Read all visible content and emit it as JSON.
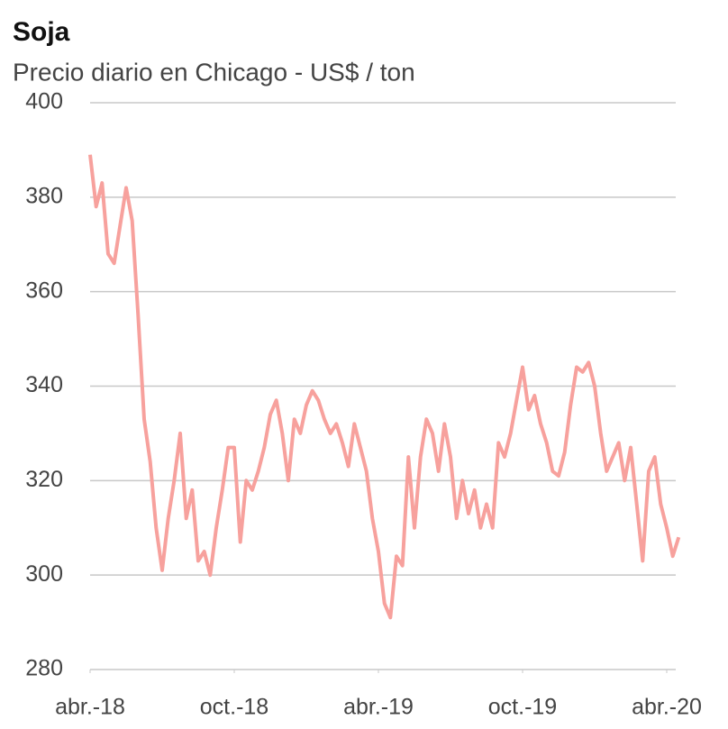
{
  "chart_data": {
    "type": "line",
    "title": "Soja",
    "subtitle": "Precio diario en Chicago - US$ / ton",
    "x": [
      "2018-04",
      "2018-04",
      "2018-04",
      "2018-04",
      "2018-05",
      "2018-05",
      "2018-05",
      "2018-05",
      "2018-06",
      "2018-06",
      "2018-06",
      "2018-06",
      "2018-07",
      "2018-07",
      "2018-07",
      "2018-07",
      "2018-08",
      "2018-08",
      "2018-08",
      "2018-08",
      "2018-09",
      "2018-09",
      "2018-09",
      "2018-09",
      "2018-10",
      "2018-10",
      "2018-10",
      "2018-10",
      "2018-11",
      "2018-11",
      "2018-11",
      "2018-11",
      "2018-12",
      "2018-12",
      "2018-12",
      "2018-12",
      "2019-01",
      "2019-01",
      "2019-01",
      "2019-01",
      "2019-02",
      "2019-02",
      "2019-02",
      "2019-02",
      "2019-03",
      "2019-03",
      "2019-03",
      "2019-03",
      "2019-04",
      "2019-04",
      "2019-04",
      "2019-04",
      "2019-05",
      "2019-05",
      "2019-05",
      "2019-05",
      "2019-06",
      "2019-06",
      "2019-06",
      "2019-06",
      "2019-07",
      "2019-07",
      "2019-07",
      "2019-07",
      "2019-08",
      "2019-08",
      "2019-08",
      "2019-08",
      "2019-09",
      "2019-09",
      "2019-09",
      "2019-09",
      "2019-10",
      "2019-10",
      "2019-10",
      "2019-10",
      "2019-11",
      "2019-11",
      "2019-11",
      "2019-11",
      "2019-12",
      "2019-12",
      "2019-12",
      "2019-12",
      "2020-01",
      "2020-01",
      "2020-01",
      "2020-01",
      "2020-02",
      "2020-02",
      "2020-02",
      "2020-02",
      "2020-03",
      "2020-03",
      "2020-03",
      "2020-03",
      "2020-04",
      "2020-04",
      "2020-04"
    ],
    "series": [
      {
        "name": "Soja",
        "color": "#f7a19d",
        "values": [
          389,
          378,
          383,
          368,
          366,
          374,
          382,
          375,
          355,
          333,
          324,
          310,
          301,
          312,
          320,
          330,
          312,
          318,
          303,
          305,
          300,
          310,
          318,
          327,
          327,
          307,
          320,
          318,
          322,
          327,
          334,
          337,
          330,
          320,
          333,
          330,
          336,
          339,
          337,
          333,
          330,
          332,
          328,
          323,
          332,
          327,
          322,
          312,
          305,
          294,
          291,
          304,
          302,
          325,
          310,
          325,
          333,
          330,
          322,
          332,
          325,
          312,
          320,
          313,
          318,
          310,
          315,
          310,
          328,
          325,
          330,
          337,
          344,
          335,
          338,
          332,
          328,
          322,
          321,
          326,
          336,
          344,
          343,
          345,
          340,
          330,
          322,
          325,
          328,
          320,
          327,
          315,
          303,
          322,
          325,
          315,
          310,
          304,
          308
        ]
      }
    ],
    "ylim": [
      280,
      400
    ],
    "yticks": [
      280,
      300,
      320,
      340,
      360,
      380,
      400
    ],
    "xticks": [
      {
        "value": "2018-04",
        "label": "abr.-18"
      },
      {
        "value": "2018-10",
        "label": "oct.-18"
      },
      {
        "value": "2019-04",
        "label": "abr.-19"
      },
      {
        "value": "2019-10",
        "label": "oct.-19"
      },
      {
        "value": "2020-04",
        "label": "abr.-20"
      }
    ],
    "grid": true
  }
}
